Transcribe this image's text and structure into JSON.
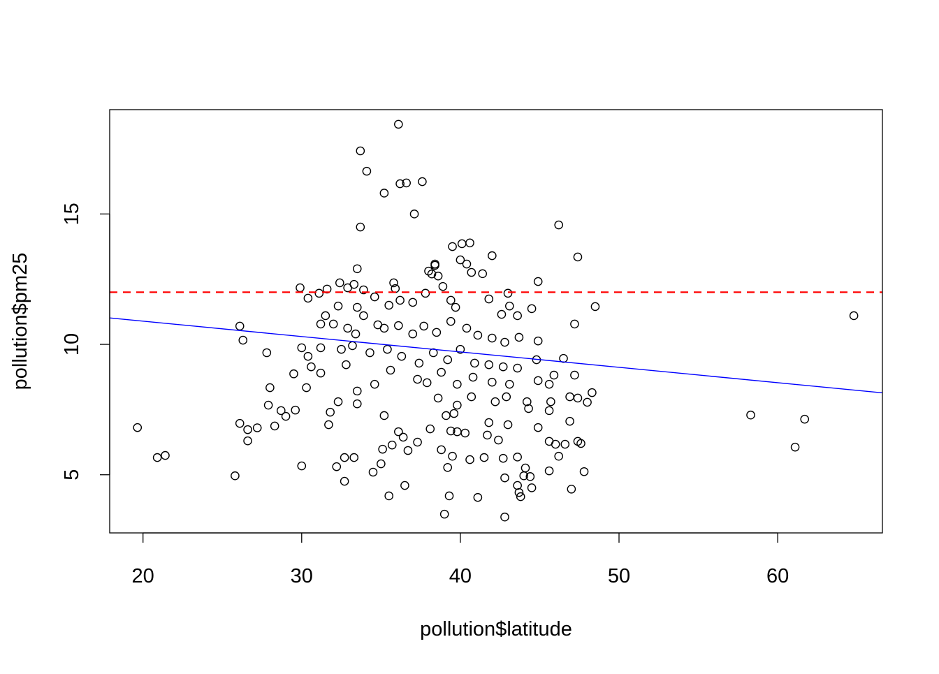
{
  "chart_data": {
    "type": "scatter",
    "title": "",
    "xlabel": "pollution$latitude",
    "ylabel": "pollution$pm25",
    "xlim": [
      17.9,
      66.6
    ],
    "ylim": [
      2.77,
      19.0
    ],
    "xticks": [
      20,
      30,
      40,
      50,
      60
    ],
    "yticks": [
      5,
      10,
      15
    ],
    "grid": false,
    "marker": "open-circle",
    "point_color": "#000000",
    "reference_lines": [
      {
        "kind": "horizontal",
        "y": 12,
        "color": "#FF0000",
        "style": "dashed"
      },
      {
        "kind": "regression",
        "intercept": 12.07,
        "slope": -0.059,
        "color": "#0000FF",
        "style": "solid"
      }
    ],
    "points": [
      [
        19.65,
        6.81
      ],
      [
        20.9,
        5.66
      ],
      [
        21.4,
        5.74
      ],
      [
        25.8,
        4.96
      ],
      [
        26.1,
        10.7
      ],
      [
        26.3,
        10.16
      ],
      [
        26.1,
        6.97
      ],
      [
        26.6,
        6.73
      ],
      [
        26.6,
        6.3
      ],
      [
        27.2,
        6.8
      ],
      [
        27.8,
        9.68
      ],
      [
        28.0,
        8.34
      ],
      [
        27.9,
        7.67
      ],
      [
        28.3,
        6.87
      ],
      [
        28.7,
        7.46
      ],
      [
        29.0,
        7.24
      ],
      [
        29.6,
        7.48
      ],
      [
        30.0,
        5.34
      ],
      [
        29.9,
        12.17
      ],
      [
        30.4,
        11.77
      ],
      [
        29.5,
        8.87
      ],
      [
        30.3,
        8.34
      ],
      [
        30.0,
        9.87
      ],
      [
        31.2,
        8.9
      ],
      [
        31.8,
        7.4
      ],
      [
        31.7,
        6.92
      ],
      [
        32.3,
        7.8
      ],
      [
        32.2,
        5.31
      ],
      [
        32.7,
        4.75
      ],
      [
        32.7,
        5.66
      ],
      [
        33.3,
        5.66
      ],
      [
        33.5,
        7.72
      ],
      [
        33.7,
        17.42
      ],
      [
        34.1,
        16.64
      ],
      [
        33.7,
        14.5
      ],
      [
        33.5,
        12.9
      ],
      [
        35.2,
        15.8
      ],
      [
        36.1,
        18.44
      ],
      [
        36.2,
        16.16
      ],
      [
        36.6,
        16.19
      ],
      [
        37.6,
        16.24
      ],
      [
        37.1,
        15.0
      ],
      [
        35.2,
        7.27
      ],
      [
        34.5,
        5.1
      ],
      [
        35.0,
        5.42
      ],
      [
        35.1,
        5.98
      ],
      [
        35.5,
        4.19
      ],
      [
        36.5,
        4.59
      ],
      [
        35.7,
        6.14
      ],
      [
        36.1,
        6.65
      ],
      [
        36.4,
        6.44
      ],
      [
        36.7,
        5.93
      ],
      [
        37.3,
        6.25
      ],
      [
        37.9,
        8.53
      ],
      [
        38.1,
        6.76
      ],
      [
        38.8,
        5.96
      ],
      [
        39.0,
        3.49
      ],
      [
        39.2,
        5.28
      ],
      [
        39.3,
        4.19
      ],
      [
        39.5,
        5.71
      ],
      [
        39.4,
        6.68
      ],
      [
        39.1,
        7.27
      ],
      [
        39.6,
        7.35
      ],
      [
        39.8,
        6.65
      ],
      [
        40.3,
        6.6
      ],
      [
        40.6,
        5.58
      ],
      [
        41.1,
        4.13
      ],
      [
        41.5,
        5.66
      ],
      [
        41.7,
        6.52
      ],
      [
        42.4,
        6.33
      ],
      [
        42.7,
        5.63
      ],
      [
        42.8,
        4.88
      ],
      [
        42.8,
        3.38
      ],
      [
        43.6,
        5.68
      ],
      [
        43.6,
        4.59
      ],
      [
        43.7,
        4.32
      ],
      [
        43.8,
        4.16
      ],
      [
        44.1,
        5.26
      ],
      [
        44.0,
        4.96
      ],
      [
        44.4,
        4.93
      ],
      [
        44.5,
        4.5
      ],
      [
        45.6,
        5.15
      ],
      [
        47.0,
        4.45
      ],
      [
        47.8,
        5.12
      ],
      [
        47.6,
        6.2
      ],
      [
        47.4,
        6.28
      ],
      [
        46.6,
        6.17
      ],
      [
        46.2,
        5.71
      ],
      [
        46.0,
        6.17
      ],
      [
        45.6,
        6.28
      ],
      [
        46.9,
        7.05
      ],
      [
        47.4,
        7.94
      ],
      [
        48.0,
        7.78
      ],
      [
        48.3,
        8.15
      ],
      [
        46.9,
        7.99
      ],
      [
        47.2,
        8.82
      ],
      [
        46.2,
        14.58
      ],
      [
        47.4,
        13.35
      ],
      [
        48.5,
        11.45
      ],
      [
        47.2,
        10.78
      ],
      [
        46.5,
        9.46
      ],
      [
        44.9,
        12.41
      ],
      [
        43.0,
        11.96
      ],
      [
        44.5,
        11.37
      ],
      [
        58.3,
        7.29
      ],
      [
        61.1,
        6.06
      ],
      [
        61.7,
        7.13
      ],
      [
        64.8,
        11.1
      ],
      [
        39.5,
        13.75
      ],
      [
        40.1,
        13.86
      ],
      [
        40.6,
        13.89
      ],
      [
        42.0,
        13.4
      ],
      [
        38.2,
        12.7
      ],
      [
        38.4,
        13.03
      ],
      [
        31.1,
        11.96
      ],
      [
        31.6,
        12.12
      ],
      [
        32.4,
        12.36
      ],
      [
        32.9,
        12.17
      ],
      [
        33.3,
        12.3
      ],
      [
        33.9,
        12.09
      ],
      [
        34.6,
        11.82
      ],
      [
        35.5,
        11.5
      ],
      [
        35.8,
        12.36
      ],
      [
        35.9,
        12.14
      ],
      [
        36.2,
        11.69
      ],
      [
        37.0,
        11.61
      ],
      [
        37.8,
        11.96
      ],
      [
        38.0,
        12.81
      ],
      [
        38.4,
        13.08
      ],
      [
        38.6,
        12.62
      ],
      [
        38.9,
        12.22
      ],
      [
        39.4,
        11.69
      ],
      [
        39.7,
        11.42
      ],
      [
        40.0,
        13.24
      ],
      [
        40.4,
        13.08
      ],
      [
        40.7,
        12.76
      ],
      [
        41.4,
        12.71
      ],
      [
        41.8,
        11.74
      ],
      [
        42.6,
        11.15
      ],
      [
        43.1,
        11.47
      ],
      [
        43.6,
        11.1
      ],
      [
        33.5,
        11.42
      ],
      [
        32.3,
        11.47
      ],
      [
        31.5,
        11.1
      ],
      [
        31.2,
        10.78
      ],
      [
        32.0,
        10.78
      ],
      [
        32.9,
        10.62
      ],
      [
        33.9,
        11.1
      ],
      [
        34.8,
        10.75
      ],
      [
        35.2,
        10.62
      ],
      [
        36.1,
        10.72
      ],
      [
        37.0,
        10.4
      ],
      [
        37.7,
        10.7
      ],
      [
        38.5,
        10.46
      ],
      [
        39.4,
        10.88
      ],
      [
        40.4,
        10.62
      ],
      [
        41.1,
        10.35
      ],
      [
        42.0,
        10.24
      ],
      [
        42.8,
        10.08
      ],
      [
        43.7,
        10.27
      ],
      [
        44.9,
        10.13
      ],
      [
        31.2,
        9.87
      ],
      [
        32.5,
        9.81
      ],
      [
        33.2,
        9.95
      ],
      [
        34.3,
        9.68
      ],
      [
        35.4,
        9.81
      ],
      [
        36.3,
        9.54
      ],
      [
        37.4,
        9.28
      ],
      [
        38.3,
        9.68
      ],
      [
        39.2,
        9.41
      ],
      [
        40.0,
        9.81
      ],
      [
        40.9,
        9.28
      ],
      [
        41.8,
        9.22
      ],
      [
        42.7,
        9.14
      ],
      [
        43.6,
        9.09
      ],
      [
        44.8,
        9.41
      ],
      [
        30.6,
        9.14
      ],
      [
        32.8,
        9.22
      ],
      [
        34.6,
        8.47
      ],
      [
        35.6,
        9.01
      ],
      [
        37.3,
        8.66
      ],
      [
        38.8,
        8.93
      ],
      [
        39.8,
        8.47
      ],
      [
        40.8,
        8.74
      ],
      [
        42.0,
        8.55
      ],
      [
        43.1,
        8.47
      ],
      [
        44.9,
        8.61
      ],
      [
        45.6,
        8.47
      ],
      [
        45.9,
        8.82
      ],
      [
        42.9,
        7.99
      ],
      [
        42.2,
        7.8
      ],
      [
        44.2,
        7.8
      ],
      [
        45.7,
        7.8
      ],
      [
        44.3,
        7.54
      ],
      [
        45.6,
        7.46
      ],
      [
        44.9,
        6.81
      ],
      [
        43.0,
        6.92
      ],
      [
        41.8,
        7.0
      ],
      [
        40.7,
        7.99
      ],
      [
        39.8,
        7.67
      ],
      [
        38.6,
        7.94
      ],
      [
        33.5,
        8.21
      ],
      [
        30.4,
        9.54
      ],
      [
        33.4,
        10.4
      ]
    ]
  }
}
